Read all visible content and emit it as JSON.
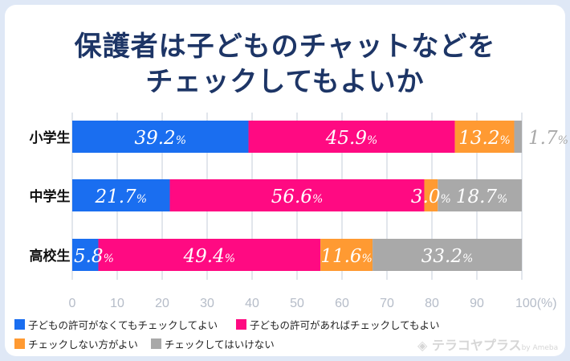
{
  "title_lines": [
    "保護者は子どものチャットなどを",
    "チェックしてもよいか"
  ],
  "chart_data": {
    "type": "bar",
    "orientation": "horizontal",
    "stacked": true,
    "categories": [
      "小学生",
      "中学生",
      "高校生"
    ],
    "series": [
      {
        "name": "子どもの許可がなくてもチェックしてよい",
        "color": "#1a6ef0",
        "values": [
          39.2,
          21.7,
          5.8
        ]
      },
      {
        "name": "子どもの許可があればチェックしてもよい",
        "color": "#ff0a82",
        "values": [
          45.9,
          56.6,
          49.4
        ]
      },
      {
        "name": "チェックしない方がよい",
        "color": "#ff9a32",
        "values": [
          13.2,
          3.0,
          11.6
        ]
      },
      {
        "name": "チェックしてはいけない",
        "color": "#a9a9a9",
        "values": [
          1.7,
          18.7,
          33.2
        ]
      }
    ],
    "xlim": [
      0,
      100
    ],
    "xticks": [
      "0",
      "10",
      "20",
      "30",
      "40",
      "50",
      "60",
      "70",
      "80",
      "90",
      "100(%)"
    ],
    "grid": true,
    "legend_position": "bottom",
    "unit": "%"
  },
  "watermark": {
    "brand": "テラコヤプラス",
    "by": "by Ameba"
  }
}
